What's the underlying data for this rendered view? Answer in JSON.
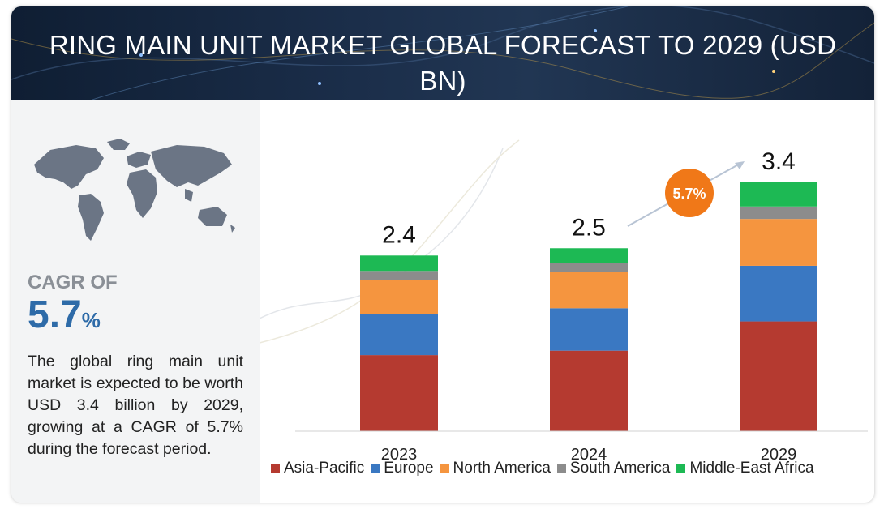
{
  "header": {
    "title": "RING MAIN UNIT MARKET GLOBAL FORECAST TO 2029 (USD BN)"
  },
  "sidebar": {
    "cagr_label": "CAGR OF",
    "cagr_value": "5.7",
    "cagr_unit": "%",
    "description": "The global ring main unit market is expected to be worth USD 3.4 billion by 2029, growing at a CAGR of 5.7% during the forecast period."
  },
  "chart_data": {
    "type": "bar",
    "stacked": true,
    "categories": [
      "2023",
      "2024",
      "2029"
    ],
    "totals": [
      "2.4",
      "2.5",
      "3.4"
    ],
    "total_values": [
      2.4,
      2.5,
      3.4
    ],
    "series": [
      {
        "name": "Asia-Pacific",
        "color": "#b53a30",
        "values": [
          1.04,
          1.1,
          1.5
        ]
      },
      {
        "name": "Europe",
        "color": "#3a78c2",
        "values": [
          0.56,
          0.58,
          0.76
        ]
      },
      {
        "name": "North America",
        "color": "#f5953f",
        "values": [
          0.47,
          0.5,
          0.64
        ]
      },
      {
        "name": "South America",
        "color": "#8c8c8c",
        "values": [
          0.12,
          0.12,
          0.17
        ]
      },
      {
        "name": "Middle-East Africa",
        "color": "#1db954",
        "values": [
          0.21,
          0.2,
          0.33
        ]
      }
    ],
    "cagr_badge": "5.7%",
    "cagr_badge_color": "#f07818",
    "ylim": [
      0,
      3.4
    ],
    "grid": false,
    "legend_position": "bottom"
  }
}
